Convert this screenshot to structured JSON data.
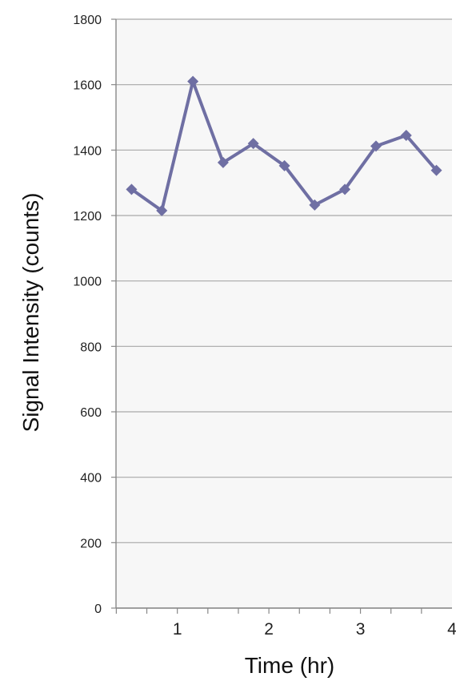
{
  "chart_data": {
    "type": "line",
    "title": "",
    "xlabel": "Time (hr)",
    "ylabel": "Signal Intensity (counts)",
    "xlim": [
      0.33,
      4
    ],
    "ylim": [
      0,
      1800
    ],
    "x_ticks": [
      1,
      2,
      3,
      4
    ],
    "y_ticks": [
      0,
      200,
      400,
      600,
      800,
      1000,
      1200,
      1400,
      1600,
      1800
    ],
    "grid": "horizontal",
    "series": [
      {
        "color": "#6f6fa3",
        "marker": "diamond",
        "x": [
          0.5,
          0.83,
          1.17,
          1.5,
          1.83,
          2.17,
          2.5,
          2.83,
          3.17,
          3.5,
          3.83
        ],
        "y": [
          1280,
          1215,
          1610,
          1362,
          1420,
          1352,
          1232,
          1280,
          1412,
          1445,
          1338
        ]
      }
    ]
  }
}
